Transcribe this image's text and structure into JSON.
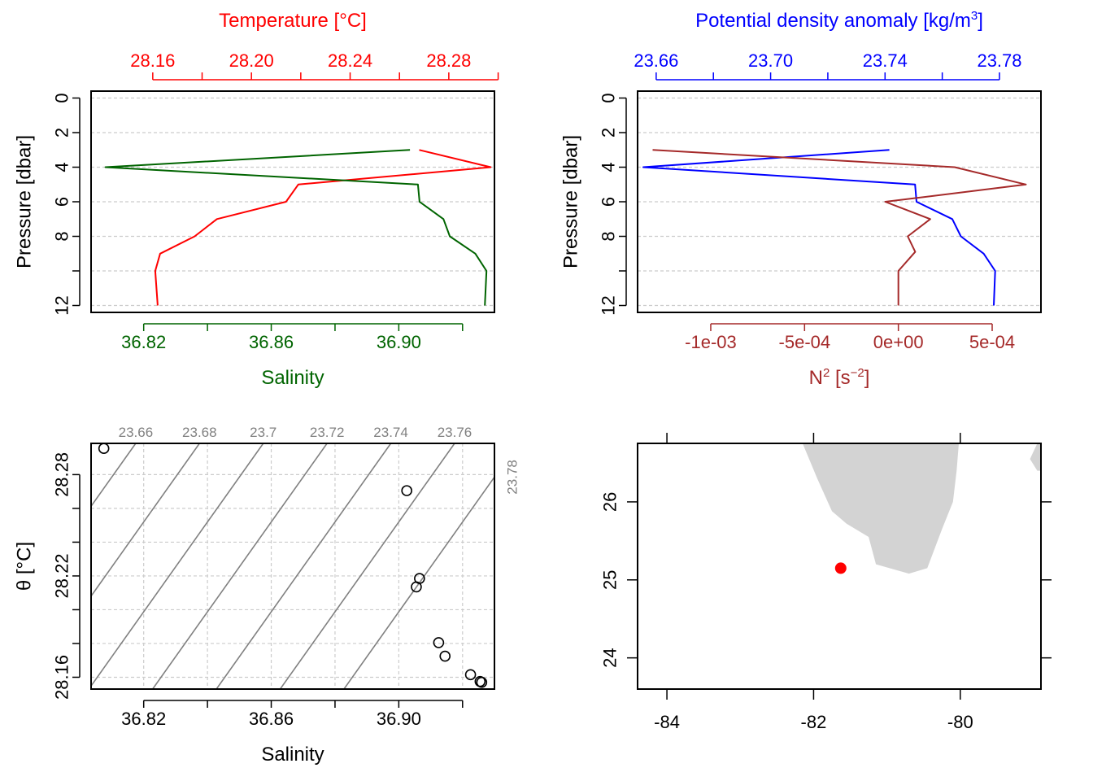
{
  "colors": {
    "temperature": "#ff0000",
    "salinity": "#006400",
    "density": "#0000ff",
    "n2": "#a52a2a",
    "isopycnal": "#808080",
    "land": "#d3d3d3",
    "station": "#ff0000",
    "grid": "#cccccc",
    "frame": "#000000"
  },
  "chart_data": [
    {
      "type": "line",
      "panel": "temperature-salinity-profile",
      "ylabel": "Pressure [dbar]",
      "ylim": [
        12.4,
        -0.4
      ],
      "y_ticks": [
        0,
        2,
        4,
        6,
        8,
        10,
        12
      ],
      "y_tick_labels": [
        "0",
        "2",
        "4",
        "6",
        "8",
        "",
        "12"
      ],
      "top_axis": {
        "label": "Temperature [°C]",
        "lim": [
          28.135,
          28.2985
        ],
        "ticks": [
          28.16,
          28.18,
          28.2,
          28.22,
          28.24,
          28.26,
          28.28,
          28.3
        ],
        "tick_labels": [
          "28.16",
          "",
          "28.20",
          "",
          "28.24",
          "",
          "28.28",
          ""
        ]
      },
      "bottom_axis": {
        "label": "Salinity",
        "lim": [
          36.8035,
          36.93
        ],
        "ticks": [
          36.82,
          36.84,
          36.86,
          36.88,
          36.9,
          36.92
        ],
        "tick_labels": [
          "36.82",
          "",
          "36.86",
          "",
          "36.90",
          ""
        ]
      },
      "series": [
        {
          "name": "Temperature",
          "axis": "top",
          "color_key": "temperature",
          "x": [
            28.268,
            28.297,
            28.219,
            28.214,
            28.186,
            28.177,
            28.163,
            28.161,
            28.162
          ],
          "y": [
            3,
            4,
            5,
            6,
            7,
            8,
            9,
            10,
            12
          ]
        },
        {
          "name": "Salinity",
          "axis": "bottom",
          "color_key": "salinity",
          "x": [
            36.9035,
            36.808,
            36.906,
            36.9065,
            36.914,
            36.916,
            36.924,
            36.9275,
            36.927
          ],
          "y": [
            3,
            4,
            5,
            6,
            7,
            8,
            9,
            10,
            12
          ]
        }
      ]
    },
    {
      "type": "line",
      "panel": "density-n2-profile",
      "ylabel": "Pressure [dbar]",
      "ylim": [
        12.4,
        -0.4
      ],
      "y_ticks": [
        0,
        2,
        4,
        6,
        8,
        10,
        12
      ],
      "y_tick_labels": [
        "0",
        "2",
        "4",
        "6",
        "8",
        "",
        "12"
      ],
      "top_axis": {
        "label_main": "Potential density anomaly [kg/m",
        "label_sup": "3",
        "label_tail": "]",
        "lim": [
          23.6535,
          23.7945
        ],
        "ticks": [
          23.66,
          23.68,
          23.7,
          23.72,
          23.74,
          23.76,
          23.78
        ],
        "tick_labels": [
          "23.66",
          "",
          "23.70",
          "",
          "23.74",
          "",
          "23.78"
        ]
      },
      "bottom_axis": {
        "label_main": "N",
        "label_sup1": "2",
        "label_mid": " [s",
        "label_sup2": "−2",
        "label_tail": "]",
        "lim": [
          -0.00139,
          0.00076
        ],
        "ticks": [
          -0.0015,
          -0.001,
          -0.0005,
          0,
          0.0005
        ],
        "tick_labels": [
          "",
          "-1e-03",
          "-5e-04",
          "0e+00",
          "5e-04"
        ]
      },
      "series": [
        {
          "name": "Potential density anomaly",
          "axis": "top",
          "color_key": "density",
          "x": [
            23.7415,
            23.6555,
            23.7505,
            23.751,
            23.7635,
            23.7665,
            23.7745,
            23.7785,
            23.778
          ],
          "y": [
            3,
            4,
            5,
            6,
            7,
            8,
            9,
            10,
            12
          ]
        },
        {
          "name": "N2",
          "axis": "bottom",
          "color_key": "n2",
          "x": [
            -0.00131,
            0.0003,
            0.00068,
            -7e-05,
            0.00017,
            5e-05,
            9e-05,
            0.0,
            0.0
          ],
          "y": [
            3,
            4,
            5,
            6,
            7,
            8,
            8.9,
            10,
            12
          ]
        }
      ]
    },
    {
      "type": "scatter",
      "panel": "ts-diagram",
      "xlabel": "Salinity",
      "ylabel": "θ [°C]",
      "xlim": [
        36.8035,
        36.93
      ],
      "ylim": [
        28.153,
        28.2985
      ],
      "x_ticks": [
        36.82,
        36.84,
        36.86,
        36.88,
        36.9,
        36.92
      ],
      "x_tick_labels": [
        "36.82",
        "",
        "36.86",
        "",
        "36.90",
        ""
      ],
      "y_ticks": [
        28.16,
        28.18,
        28.2,
        28.22,
        28.24,
        28.26,
        28.28
      ],
      "y_tick_labels": [
        "28.16",
        "",
        "",
        "28.22",
        "",
        "",
        "28.28"
      ],
      "points": {
        "x": [
          36.8075,
          36.9025,
          36.9065,
          36.9055,
          36.9125,
          36.9145,
          36.9225,
          36.9255,
          36.926
        ],
        "y": [
          28.2955,
          28.2705,
          28.2185,
          28.2135,
          28.1805,
          28.1725,
          28.1615,
          28.1575,
          28.157
        ]
      },
      "isopycnals": {
        "values": [
          23.66,
          23.68,
          23.7,
          23.72,
          23.74,
          23.76,
          23.78
        ],
        "labels": [
          "23.66",
          "23.68",
          "23.7",
          "23.72",
          "23.74",
          "23.76",
          "23.78"
        ],
        "x_at_top": [
          36.8175,
          36.8375,
          36.8575,
          36.8775,
          36.8975,
          36.9175,
          36.9375
        ],
        "slope_degC_per_psu": 2.66
      }
    },
    {
      "type": "map",
      "panel": "station-map",
      "xlim": [
        -84.4,
        -78.9
      ],
      "ylim": [
        23.6,
        26.75
      ],
      "x_ticks": [
        -84,
        -82,
        -80
      ],
      "x_tick_labels": [
        "-84",
        "-82",
        "-80"
      ],
      "y_ticks": [
        24,
        25,
        26
      ],
      "y_tick_labels": [
        "24",
        "25",
        "26"
      ],
      "station": {
        "lon": -81.63,
        "lat": 25.15
      },
      "land": [
        [
          [
            -82.15,
            26.75
          ],
          [
            -81.95,
            26.3
          ],
          [
            -81.75,
            25.88
          ],
          [
            -81.55,
            25.72
          ],
          [
            -81.25,
            25.55
          ],
          [
            -81.15,
            25.2
          ],
          [
            -80.7,
            25.08
          ],
          [
            -80.45,
            25.15
          ],
          [
            -80.25,
            25.65
          ],
          [
            -80.1,
            26.0
          ],
          [
            -80.05,
            26.4
          ],
          [
            -80.02,
            26.75
          ]
        ],
        [
          [
            -78.95,
            26.75
          ],
          [
            -78.9,
            26.75
          ],
          [
            -78.9,
            26.4
          ],
          [
            -78.95,
            26.4
          ],
          [
            -79.05,
            26.55
          ]
        ]
      ]
    }
  ]
}
